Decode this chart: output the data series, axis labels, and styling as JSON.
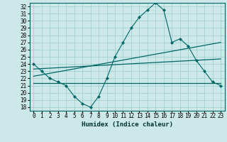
{
  "xlabel": "Humidex (Indice chaleur)",
  "bg_color": "#cce8e8",
  "grid_color": "#99cccc",
  "line_color": "#006666",
  "xlim": [
    -0.5,
    23.5
  ],
  "ylim": [
    17.5,
    32.5
  ],
  "yticks": [
    18,
    19,
    20,
    21,
    22,
    23,
    24,
    25,
    26,
    27,
    28,
    29,
    30,
    31,
    32
  ],
  "xticks": [
    0,
    1,
    2,
    3,
    4,
    5,
    6,
    7,
    8,
    9,
    10,
    11,
    12,
    13,
    14,
    15,
    16,
    17,
    18,
    19,
    20,
    21,
    22,
    23
  ],
  "x_labels": [
    "0",
    "1",
    "2",
    "3",
    "4",
    "5",
    "6",
    "7",
    "8",
    "9",
    "10",
    "11",
    "12",
    "13",
    "14",
    "15",
    "16",
    "17",
    "18",
    "19",
    "20",
    "21",
    "22",
    "23"
  ],
  "series1_x": [
    0,
    1,
    2,
    3,
    4,
    5,
    6,
    7,
    8,
    9,
    10,
    11,
    12,
    13,
    14,
    15,
    16,
    17,
    18,
    19,
    20,
    21,
    22,
    23
  ],
  "series1_y": [
    24.0,
    23.0,
    22.0,
    21.5,
    21.0,
    19.5,
    18.5,
    18.0,
    19.5,
    22.0,
    25.0,
    27.0,
    29.0,
    30.5,
    31.5,
    32.5,
    31.5,
    27.0,
    27.5,
    26.5,
    24.5,
    23.0,
    21.5,
    21.0
  ],
  "series2_x": [
    0,
    23
  ],
  "series2_y": [
    21.3,
    21.3
  ],
  "series3_x": [
    0,
    23
  ],
  "series3_y": [
    22.3,
    27.0
  ],
  "series4_x": [
    0,
    23
  ],
  "series4_y": [
    23.3,
    24.7
  ]
}
